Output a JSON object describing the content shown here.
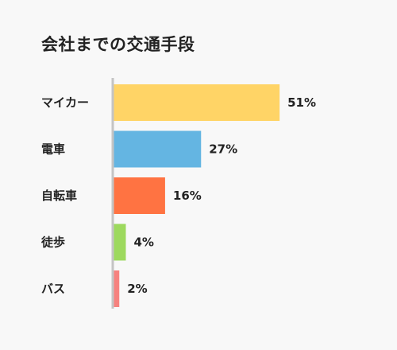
{
  "chart_data": {
    "type": "bar",
    "orientation": "horizontal",
    "title": "会社までの交通手段",
    "categories": [
      "マイカー",
      "電車",
      "自転車",
      "徒歩",
      "バス"
    ],
    "values": [
      51,
      27,
      16,
      4,
      2
    ],
    "value_labels": [
      "51%",
      "27%",
      "16%",
      "4%",
      "2%"
    ],
    "colors": [
      "#FFD466",
      "#64B5E2",
      "#FF7342",
      "#9DD95E",
      "#F6827F"
    ],
    "xlim": [
      0,
      100
    ],
    "grid": false,
    "legend": "none"
  }
}
